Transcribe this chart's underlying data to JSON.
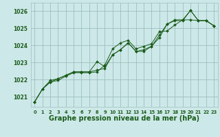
{
  "background_color": "#cde8e8",
  "grid_color": "#9dbfbf",
  "line_color": "#1a5c1a",
  "marker_color": "#1a5c1a",
  "xlabel": "Graphe pression niveau de la mer (hPa)",
  "xlabel_fontsize": 7.0,
  "ylim": [
    1020.4,
    1026.5
  ],
  "xlim": [
    -0.5,
    23.5
  ],
  "yticks": [
    1021,
    1022,
    1023,
    1024,
    1025,
    1026
  ],
  "xticks": [
    0,
    1,
    2,
    3,
    4,
    5,
    6,
    7,
    8,
    9,
    10,
    11,
    12,
    13,
    14,
    15,
    16,
    17,
    18,
    19,
    20,
    21,
    22,
    23
  ],
  "xtick_fontsize": 4.8,
  "ytick_fontsize": 5.5,
  "series": [
    [
      1020.7,
      1021.45,
      1021.85,
      1022.05,
      1022.25,
      1022.45,
      1022.45,
      1022.45,
      1022.55,
      1022.65,
      1023.45,
      1023.75,
      1024.15,
      1023.65,
      1023.65,
      1023.95,
      1024.6,
      1025.25,
      1025.5,
      1025.5,
      1026.05,
      1025.45,
      1025.45,
      1025.15
    ],
    [
      1020.7,
      1021.45,
      1021.85,
      1021.95,
      1022.2,
      1022.4,
      1022.4,
      1022.4,
      1022.45,
      1022.85,
      1023.8,
      1024.15,
      1024.3,
      1023.8,
      1023.95,
      1024.1,
      1024.8,
      1024.85,
      1025.2,
      1025.5,
      1025.5,
      1025.45,
      1025.45,
      1025.15
    ],
    [
      1020.7,
      1021.45,
      1021.95,
      1022.05,
      1022.25,
      1022.45,
      1022.45,
      1022.45,
      1023.05,
      1022.75,
      1023.45,
      1023.75,
      1024.15,
      1023.65,
      1023.75,
      1023.95,
      1024.45,
      1025.25,
      1025.45,
      1025.45,
      1026.05,
      1025.45,
      1025.45,
      1025.15
    ]
  ]
}
